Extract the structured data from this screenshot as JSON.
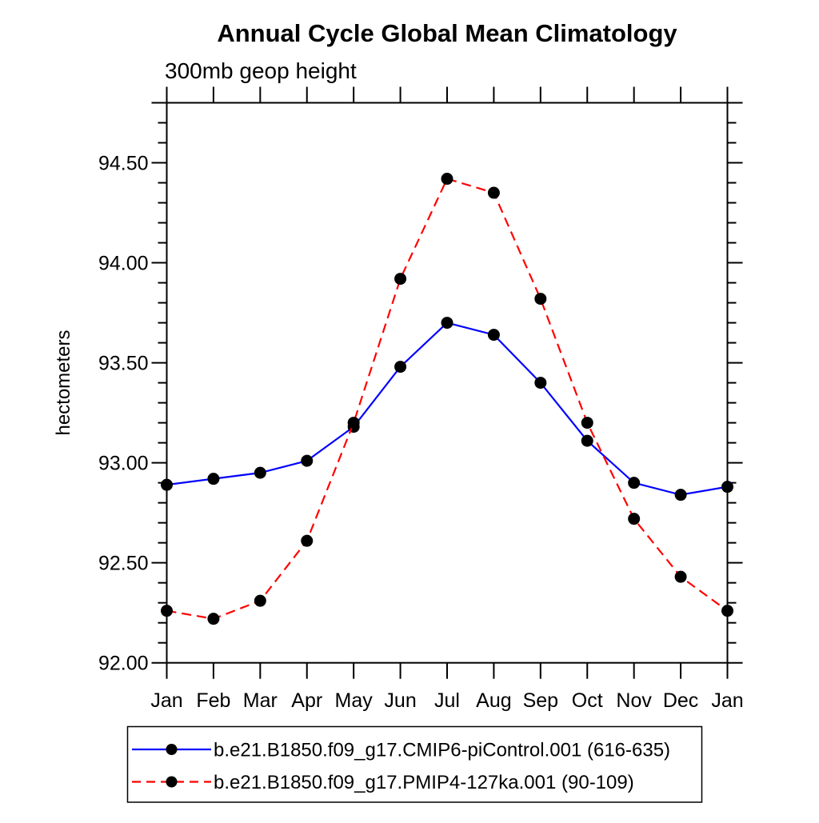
{
  "title": "Annual Cycle Global Mean Climatology",
  "subtitle": "300mb geop height",
  "ylabel": "hectometers",
  "colors": {
    "background": "#ffffff",
    "axis": "#000000",
    "marker": "#000000",
    "series1": "#0000ff",
    "series2": "#ff0000"
  },
  "chart_data": {
    "type": "line",
    "categories": [
      "Jan",
      "Feb",
      "Mar",
      "Apr",
      "May",
      "Jun",
      "Jul",
      "Aug",
      "Sep",
      "Oct",
      "Nov",
      "Dec",
      "Jan"
    ],
    "series": [
      {
        "name": "b.e21.B1850.f09_g17.CMIP6-piControl.001 (616-635)",
        "color": "#0000ff",
        "line_style": "solid",
        "marker": "filled-circle",
        "marker_color": "#000000",
        "values": [
          92.89,
          92.92,
          92.95,
          93.01,
          93.18,
          93.48,
          93.7,
          93.64,
          93.4,
          93.11,
          92.9,
          92.84,
          92.88
        ]
      },
      {
        "name": "b.e21.B1850.f09_g17.PMIP4-127ka.001 (90-109)",
        "color": "#ff0000",
        "line_style": "dashed",
        "marker": "filled-circle",
        "marker_color": "#000000",
        "values": [
          92.26,
          92.22,
          92.31,
          92.61,
          93.2,
          93.92,
          94.42,
          94.35,
          93.82,
          93.2,
          92.72,
          92.43,
          92.26
        ]
      }
    ],
    "title": "Annual Cycle Global Mean Climatology",
    "subtitle": "300mb geop height",
    "xlabel": "",
    "ylabel": "hectometers",
    "ylim": [
      92.0,
      94.8
    ],
    "ytick_labels": [
      "92.00",
      "92.50",
      "93.00",
      "93.50",
      "94.00",
      "94.50"
    ],
    "ytick_values": [
      92.0,
      92.5,
      93.0,
      93.5,
      94.0,
      94.5
    ],
    "y_minor_step": 0.1,
    "grid": false,
    "legend_position": "bottom"
  }
}
